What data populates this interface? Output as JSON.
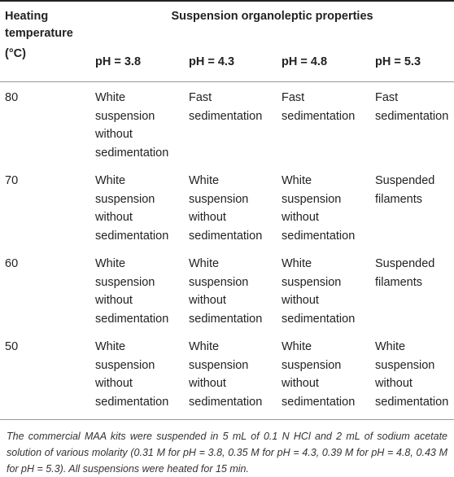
{
  "table": {
    "stub_header_line1": "Heating",
    "stub_header_line2": "temperature",
    "stub_header_line3": "(°C)",
    "group_header": "Suspension organoleptic properties",
    "columns": [
      "pH = 3.8",
      "pH = 4.3",
      "pH = 4.8",
      "pH = 5.3"
    ],
    "rows": [
      {
        "temperature": "80",
        "cells": [
          [
            "White",
            "suspension",
            "without",
            "sedimentation"
          ],
          [
            "Fast",
            "sedimentation"
          ],
          [
            "Fast",
            "sedimentation"
          ],
          [
            "Fast",
            "sedimentation"
          ]
        ]
      },
      {
        "temperature": "70",
        "cells": [
          [
            "White",
            "suspension",
            "without",
            "sedimentation"
          ],
          [
            "White",
            "suspension",
            "without",
            "sedimentation"
          ],
          [
            "White",
            "suspension",
            "without",
            "sedimentation"
          ],
          [
            "Suspended",
            "filaments"
          ]
        ]
      },
      {
        "temperature": "60",
        "cells": [
          [
            "White",
            "suspension",
            "without",
            "sedimentation"
          ],
          [
            "White",
            "suspension",
            "without",
            "sedimentation"
          ],
          [
            "White",
            "suspension",
            "without",
            "sedimentation"
          ],
          [
            "Suspended",
            "filaments"
          ]
        ]
      },
      {
        "temperature": "50",
        "cells": [
          [
            "White",
            "suspension",
            "without",
            "sedimentation"
          ],
          [
            "White",
            "suspension",
            "without",
            "sedimentation"
          ],
          [
            "White",
            "suspension",
            "without",
            "sedimentation"
          ],
          [
            "White",
            "suspension",
            "without",
            "sedimentation"
          ]
        ]
      }
    ]
  },
  "footnote": "The commercial MAA kits were suspended in 5 mL of 0.1 N HCl and 2 mL of sodium acetate solution of various molarity (0.31 M for pH = 3.8, 0.35 M for pH = 4.3, 0.39 M for pH = 4.8, 0.43 M for pH = 5.3). All suspensions were heated for 15 min."
}
